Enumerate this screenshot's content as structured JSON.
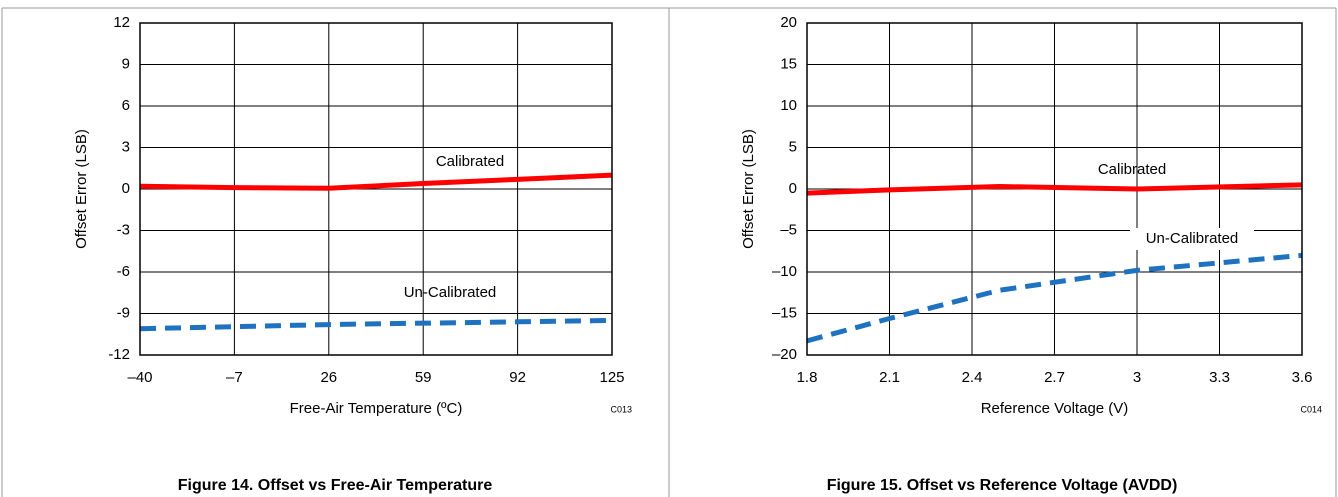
{
  "chart_data": [
    {
      "type": "line",
      "ylabel": "Offset Error (LSB)",
      "xlabel": "Free-Air Temperature (ºC)",
      "code": "C013",
      "caption": "Figure 14. Offset vs Free-Air Temperature",
      "x": [
        -40,
        -7,
        26,
        59,
        92,
        125
      ],
      "series": [
        {
          "name": "Calibrated",
          "color": "#ff0000",
          "linestyle": "solid",
          "values": [
            0.2,
            0.1,
            0.05,
            0.4,
            0.7,
            1.0
          ]
        },
        {
          "name": "Un-Calibrated",
          "color": "#1f72c0",
          "linestyle": "dashed",
          "values": [
            -10.1,
            -9.95,
            -9.8,
            -9.7,
            -9.6,
            -9.5
          ]
        }
      ],
      "xlim": [
        -40,
        125
      ],
      "xticks": [
        {
          "value": -40,
          "label": "–40"
        },
        {
          "value": -7,
          "label": "–7"
        },
        26,
        59,
        92,
        125
      ],
      "ylim": [
        -12,
        12
      ],
      "yticks": [
        12,
        9,
        6,
        3,
        0,
        -3,
        -6,
        -9,
        -12
      ],
      "grid": true
    },
    {
      "type": "line",
      "ylabel": "Offset Error (LSB)",
      "xlabel": "Reference Voltage (V)",
      "code": "C014",
      "caption": "Figure 15. Offset vs Reference Voltage (AVDD)",
      "x": [
        1.8,
        2.1,
        2.5,
        3.0,
        3.6
      ],
      "series": [
        {
          "name": "Calibrated",
          "color": "#ff0000",
          "linestyle": "solid",
          "values": [
            -0.5,
            -0.1,
            0.3,
            0.0,
            0.5
          ]
        },
        {
          "name": "Un-Calibrated",
          "color": "#1f72c0",
          "linestyle": "dashed",
          "values": [
            -18.3,
            -15.6,
            -12.2,
            -9.8,
            -8.0
          ]
        }
      ],
      "xlim": [
        1.8,
        3.6
      ],
      "xticks": [
        1.8,
        2.1,
        2.4,
        2.7,
        {
          "value": 3.0,
          "label": "3"
        },
        3.3,
        3.6
      ],
      "ylim": [
        -20,
        20
      ],
      "yticks": [
        20,
        15,
        10,
        5,
        0,
        {
          "value": -5,
          "label": "–5"
        },
        {
          "value": -10,
          "label": "–10"
        },
        {
          "value": -15,
          "label": "–15"
        },
        {
          "value": -20,
          "label": "–20"
        }
      ],
      "grid": true
    }
  ]
}
